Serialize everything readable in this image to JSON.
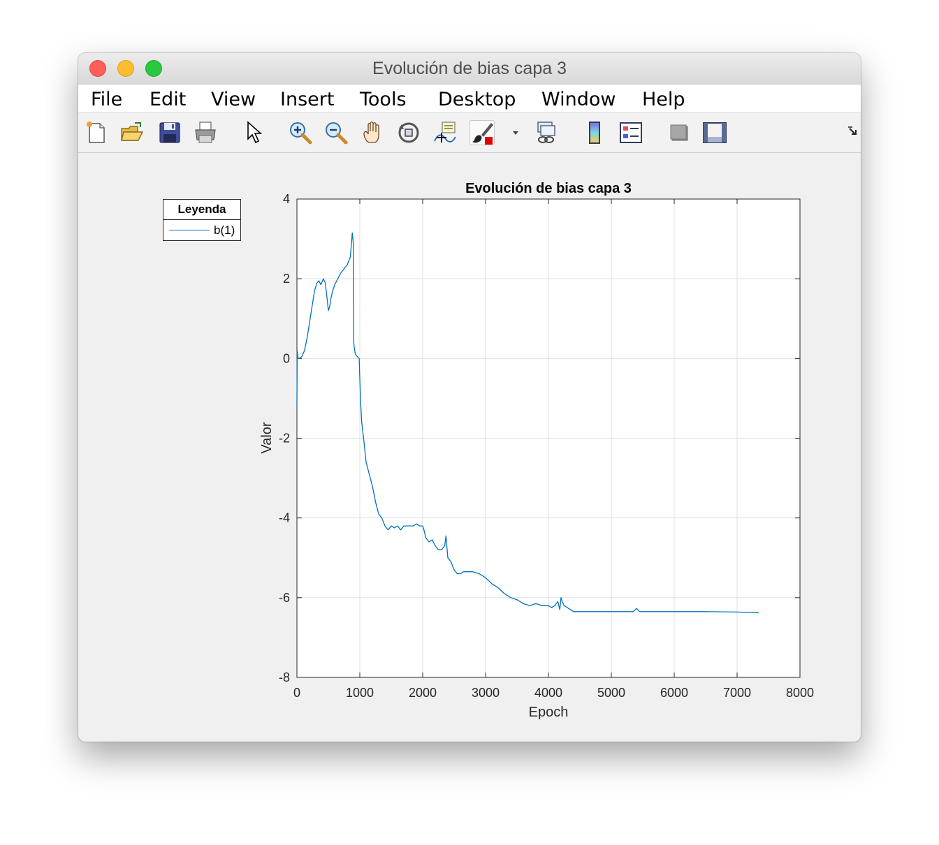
{
  "window": {
    "title": "Evolución de bias capa 3"
  },
  "menu": {
    "items": [
      "File",
      "Edit",
      "View",
      "Insert",
      "Tools",
      "Desktop",
      "Window",
      "Help"
    ]
  },
  "toolbar": {
    "icons": [
      "new-figure-icon",
      "open-icon",
      "save-icon",
      "print-icon",
      "edit-plot-arrow-icon",
      "zoom-in-icon",
      "zoom-out-icon",
      "pan-hand-icon",
      "rotate-3d-icon",
      "data-cursor-icon",
      "brush-icon",
      "brush-dropdown-icon",
      "link-plot-icon",
      "colorbar-icon",
      "legend-icon",
      "hide-plot-tools-icon",
      "show-plot-tools-icon",
      "dock-icon"
    ]
  },
  "legend": {
    "title": "Leyenda",
    "entry": "b(1)"
  },
  "chart_data": {
    "type": "line",
    "title": "Evolución de bias capa 3",
    "xlabel": "Epoch",
    "ylabel": "Valor",
    "xlim": [
      0,
      8000
    ],
    "ylim": [
      -8,
      4
    ],
    "xticks": [
      0,
      1000,
      2000,
      3000,
      4000,
      5000,
      6000,
      7000,
      8000
    ],
    "yticks": [
      4,
      2,
      0,
      -2,
      -4,
      -6,
      -8
    ],
    "grid": true,
    "legend_position": "outside-left",
    "color": "#0072bd",
    "series": [
      {
        "name": "b(1)",
        "x": [
          0,
          5,
          10,
          20,
          40,
          80,
          120,
          160,
          200,
          240,
          280,
          320,
          350,
          380,
          420,
          450,
          480,
          500,
          520,
          540,
          560,
          600,
          650,
          700,
          750,
          800,
          850,
          880,
          895,
          900,
          905,
          910,
          930,
          960,
          990,
          1010,
          1030,
          1060,
          1100,
          1150,
          1200,
          1250,
          1300,
          1350,
          1400,
          1450,
          1500,
          1550,
          1600,
          1650,
          1700,
          1750,
          1800,
          1850,
          1900,
          1950,
          2000,
          2020,
          2050,
          2100,
          2150,
          2200,
          2250,
          2300,
          2350,
          2370,
          2400,
          2450,
          2500,
          2550,
          2600,
          2650,
          2700,
          2800,
          2900,
          3000,
          3100,
          3200,
          3300,
          3400,
          3500,
          3600,
          3700,
          3800,
          3900,
          4000,
          4050,
          4100,
          4150,
          4180,
          4200,
          4220,
          4250,
          4300,
          4400,
          4500,
          4600,
          4800,
          5000,
          5200,
          5350,
          5400,
          5450,
          5600,
          6000,
          6500,
          7000,
          7350
        ],
        "y": [
          -1.2,
          0.2,
          0.1,
          0.0,
          0.0,
          0.05,
          0.2,
          0.5,
          0.9,
          1.3,
          1.7,
          1.9,
          1.95,
          1.85,
          2.0,
          1.9,
          1.5,
          1.2,
          1.3,
          1.5,
          1.65,
          1.85,
          2.0,
          2.15,
          2.25,
          2.35,
          2.55,
          3.15,
          2.9,
          1.0,
          0.4,
          0.3,
          0.1,
          0.05,
          0.0,
          -1.0,
          -1.6,
          -2.0,
          -2.6,
          -2.9,
          -3.2,
          -3.6,
          -3.9,
          -4.0,
          -4.2,
          -4.3,
          -4.2,
          -4.25,
          -4.2,
          -4.3,
          -4.2,
          -4.2,
          -4.2,
          -4.2,
          -4.15,
          -4.2,
          -4.2,
          -4.3,
          -4.5,
          -4.6,
          -4.55,
          -4.7,
          -4.8,
          -4.8,
          -4.7,
          -4.45,
          -5.0,
          -5.1,
          -5.3,
          -5.4,
          -5.4,
          -5.35,
          -5.35,
          -5.35,
          -5.4,
          -5.5,
          -5.65,
          -5.75,
          -5.9,
          -6.0,
          -6.05,
          -6.15,
          -6.2,
          -6.15,
          -6.2,
          -6.2,
          -6.25,
          -6.2,
          -6.1,
          -6.3,
          -6.0,
          -6.1,
          -6.2,
          -6.25,
          -6.35,
          -6.35,
          -6.35,
          -6.35,
          -6.35,
          -6.35,
          -6.35,
          -6.27,
          -6.35,
          -6.35,
          -6.35,
          -6.35,
          -6.36,
          -6.38
        ]
      }
    ]
  }
}
